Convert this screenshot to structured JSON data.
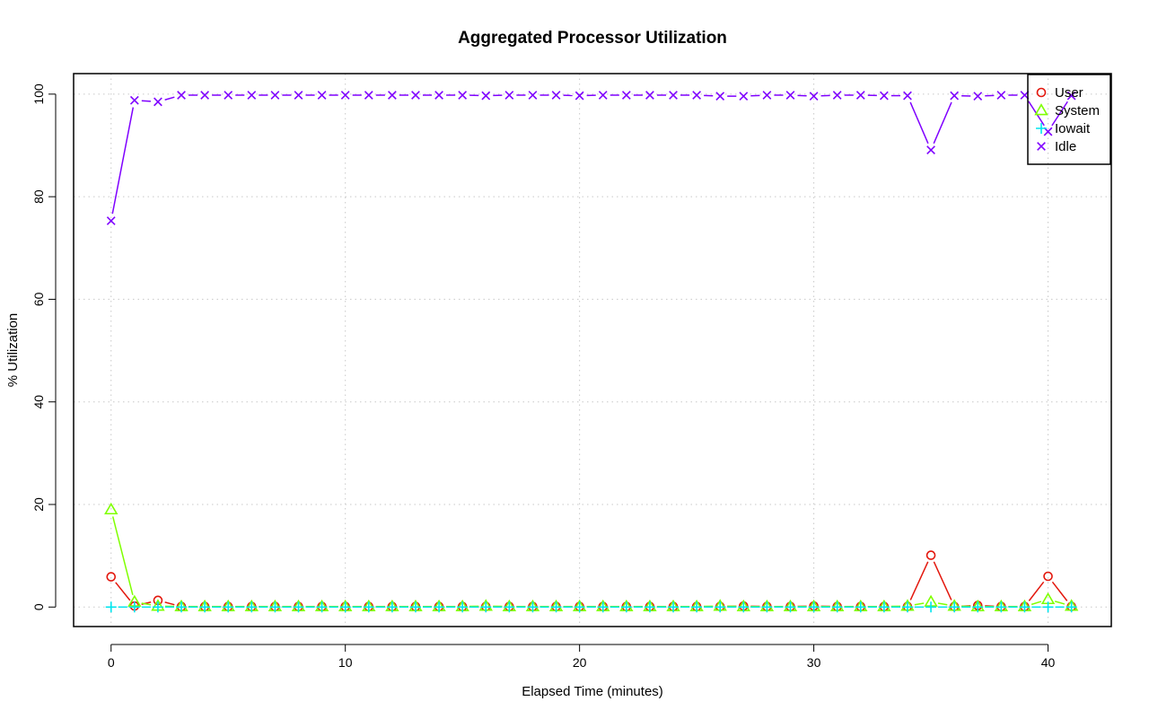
{
  "chart_data": {
    "type": "line",
    "title": "Aggregated Processor Utilization",
    "xlabel": "Elapsed Time (minutes)",
    "ylabel": "% Utilization",
    "xlim": [
      -1.6,
      42.7
    ],
    "ylim": [
      -3.8,
      104
    ],
    "x_ticks": [
      0,
      10,
      20,
      30,
      40
    ],
    "y_ticks": [
      0,
      20,
      40,
      60,
      80,
      100
    ],
    "grid": true,
    "legend_position": "top-right",
    "x": [
      0,
      1,
      2,
      3,
      4,
      5,
      6,
      7,
      8,
      9,
      10,
      11,
      12,
      13,
      14,
      15,
      16,
      17,
      18,
      19,
      20,
      21,
      22,
      23,
      24,
      25,
      26,
      27,
      28,
      29,
      30,
      31,
      32,
      33,
      34,
      35,
      36,
      37,
      38,
      39,
      40,
      41
    ],
    "series": [
      {
        "name": "User",
        "color": "#e3170d",
        "marker": "circle",
        "values": [
          5.9,
          0.2,
          1.3,
          0.1,
          0.1,
          0.1,
          0.1,
          0.1,
          0.1,
          0.1,
          0.1,
          0.1,
          0.1,
          0.1,
          0.1,
          0.1,
          0.1,
          0.1,
          0.1,
          0.1,
          0.1,
          0.1,
          0.1,
          0.1,
          0.1,
          0.1,
          0.1,
          0.2,
          0.1,
          0.1,
          0.2,
          0.1,
          0.1,
          0.1,
          0.1,
          10.1,
          0.1,
          0.3,
          0.1,
          0.1,
          6.0,
          0.1
        ]
      },
      {
        "name": "System",
        "color": "#7fff00",
        "marker": "triangle",
        "values": [
          19.0,
          1.0,
          0.2,
          0.1,
          0.1,
          0.1,
          0.1,
          0.1,
          0.1,
          0.1,
          0.1,
          0.1,
          0.1,
          0.1,
          0.1,
          0.1,
          0.2,
          0.1,
          0.1,
          0.1,
          0.1,
          0.1,
          0.1,
          0.1,
          0.1,
          0.1,
          0.2,
          0.1,
          0.1,
          0.1,
          0.1,
          0.1,
          0.1,
          0.1,
          0.2,
          1.0,
          0.2,
          0.1,
          0.1,
          0.1,
          1.5,
          0.2
        ]
      },
      {
        "name": "Iowait",
        "color": "#00e5ee",
        "marker": "plus",
        "values": [
          0,
          0,
          0,
          0,
          0,
          0,
          0,
          0,
          0,
          0,
          0,
          0,
          0,
          0,
          0,
          0,
          0,
          0,
          0,
          0,
          0,
          0,
          0,
          0,
          0,
          0,
          0,
          0,
          0,
          0,
          0,
          0,
          0,
          0,
          0,
          0,
          0,
          0,
          0,
          0,
          0,
          0
        ]
      },
      {
        "name": "Idle",
        "color": "#7f00ff",
        "marker": "cross",
        "values": [
          75.3,
          98.8,
          98.5,
          99.8,
          99.8,
          99.8,
          99.8,
          99.8,
          99.8,
          99.8,
          99.8,
          99.8,
          99.8,
          99.8,
          99.8,
          99.8,
          99.7,
          99.8,
          99.8,
          99.8,
          99.7,
          99.8,
          99.8,
          99.8,
          99.8,
          99.8,
          99.6,
          99.6,
          99.8,
          99.8,
          99.6,
          99.8,
          99.8,
          99.7,
          99.7,
          89.1,
          99.7,
          99.6,
          99.8,
          99.8,
          92.7,
          99.7
        ]
      }
    ]
  }
}
